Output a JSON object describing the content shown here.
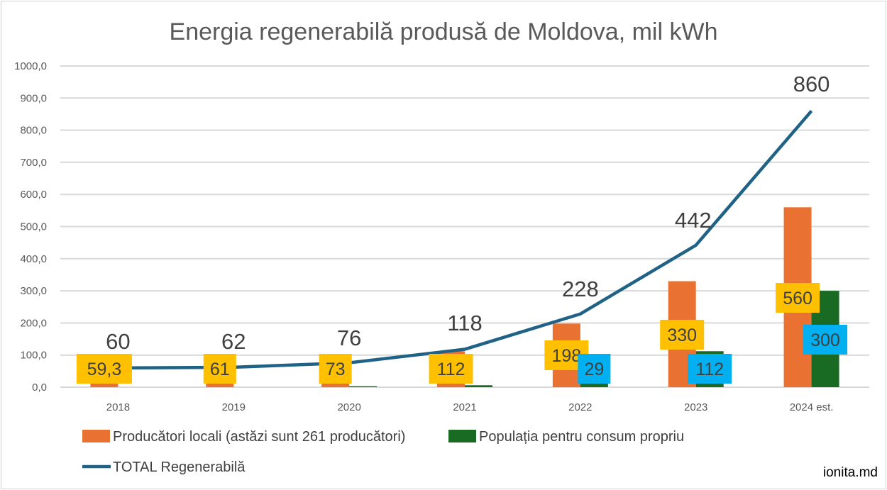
{
  "chart_data": {
    "type": "bar",
    "title": "Energia regenerabilă produsă de Moldova, mil kWh",
    "xlabel": "",
    "ylabel": "",
    "ylim": [
      0,
      1000
    ],
    "yticks": [
      "0,0",
      "100,0",
      "200,0",
      "300,0",
      "400,0",
      "500,0",
      "600,0",
      "700,0",
      "800,0",
      "900,0",
      "1000,0"
    ],
    "grid": true,
    "legend_position": "bottom",
    "categories": [
      "2018",
      "2019",
      "2020",
      "2021",
      "2022",
      "2023",
      "2024 est."
    ],
    "series": [
      {
        "name": "Producători locali (astăzi sunt 261 producători)",
        "kind": "bar",
        "color": "#E97132",
        "values": [
          59.3,
          61,
          73,
          112,
          198,
          330,
          560
        ],
        "labels": [
          "59,3",
          "61",
          "73",
          "112",
          "198",
          "330",
          "560"
        ],
        "label_bg": "#FFC000"
      },
      {
        "name": "Populația pentru consum propriu",
        "kind": "bar",
        "color": "#196B24",
        "values": [
          0,
          0,
          3,
          6,
          29,
          112,
          300
        ],
        "labels": [
          "",
          "",
          "",
          "",
          "29",
          "112",
          "300"
        ],
        "label_bg": "#00B0F0"
      },
      {
        "name": "TOTAL Regenerabilă",
        "kind": "line",
        "color": "#1F6286",
        "values": [
          60,
          62,
          76,
          118,
          228,
          442,
          860
        ],
        "labels": [
          "60",
          "62",
          "76",
          "118",
          "228",
          "442",
          "860"
        ]
      }
    ]
  },
  "watermark": "ionita.md"
}
